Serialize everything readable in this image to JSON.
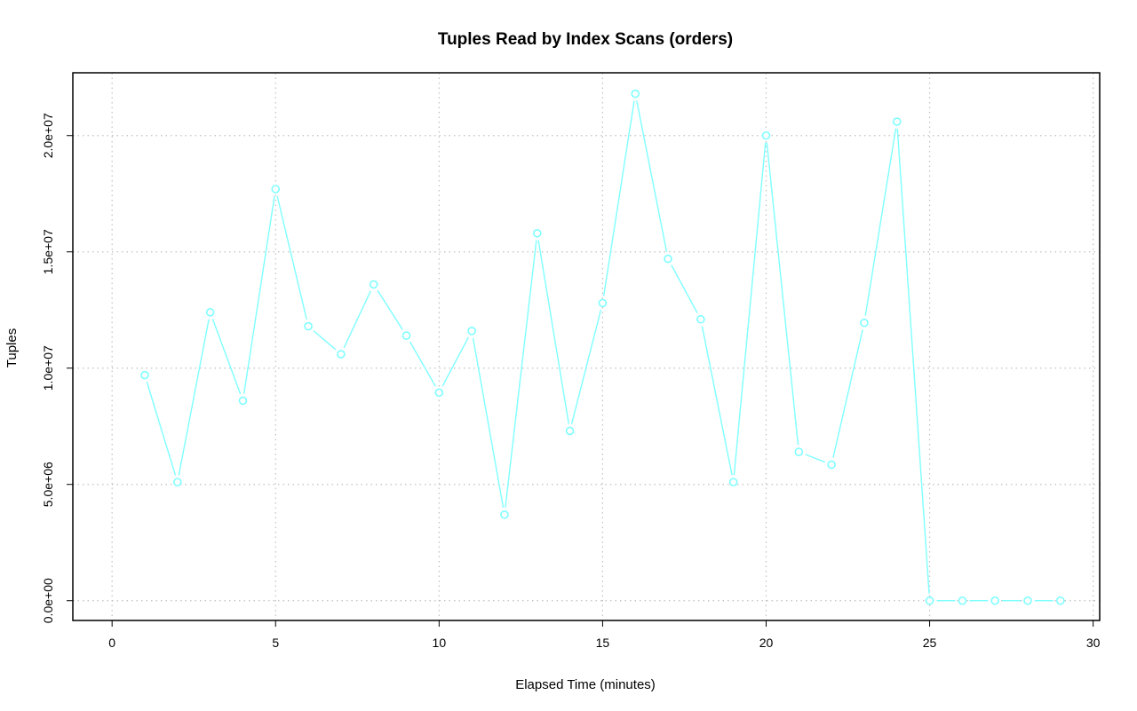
{
  "chart_data": {
    "type": "line",
    "title": "Tuples Read by Index Scans (orders)",
    "xlabel": "Elapsed Time (minutes)",
    "ylabel": "Tuples",
    "xlim": [
      -1.2,
      30.2
    ],
    "ylim": [
      -850000,
      22700000
    ],
    "xticks": [
      0,
      5,
      10,
      15,
      20,
      25,
      30
    ],
    "xtick_labels": [
      "0",
      "5",
      "10",
      "15",
      "20",
      "25",
      "30"
    ],
    "yticks": [
      0,
      5000000,
      10000000,
      15000000,
      20000000
    ],
    "ytick_labels": [
      "0.0e+00",
      "5.0e+06",
      "1.0e+07",
      "1.5e+07",
      "2.0e+07"
    ],
    "grid": true,
    "color": "#7fffff",
    "series": [
      {
        "x": [
          1,
          2,
          3,
          4,
          5,
          6,
          7,
          8,
          9,
          10,
          11,
          12,
          13,
          14,
          15,
          16,
          17,
          18,
          19,
          20,
          21,
          22,
          23,
          24,
          25,
          26,
          27,
          28,
          29
        ],
        "values": [
          9700000,
          5100000,
          12400000,
          8600000,
          17700000,
          11800000,
          10600000,
          13600000,
          11400000,
          8950000,
          11600000,
          3700000,
          15800000,
          7300000,
          12800000,
          21800000,
          14700000,
          12100000,
          5100000,
          20000000,
          6400000,
          5850000,
          11950000,
          20600000,
          0,
          0,
          0,
          0,
          0
        ]
      }
    ]
  }
}
